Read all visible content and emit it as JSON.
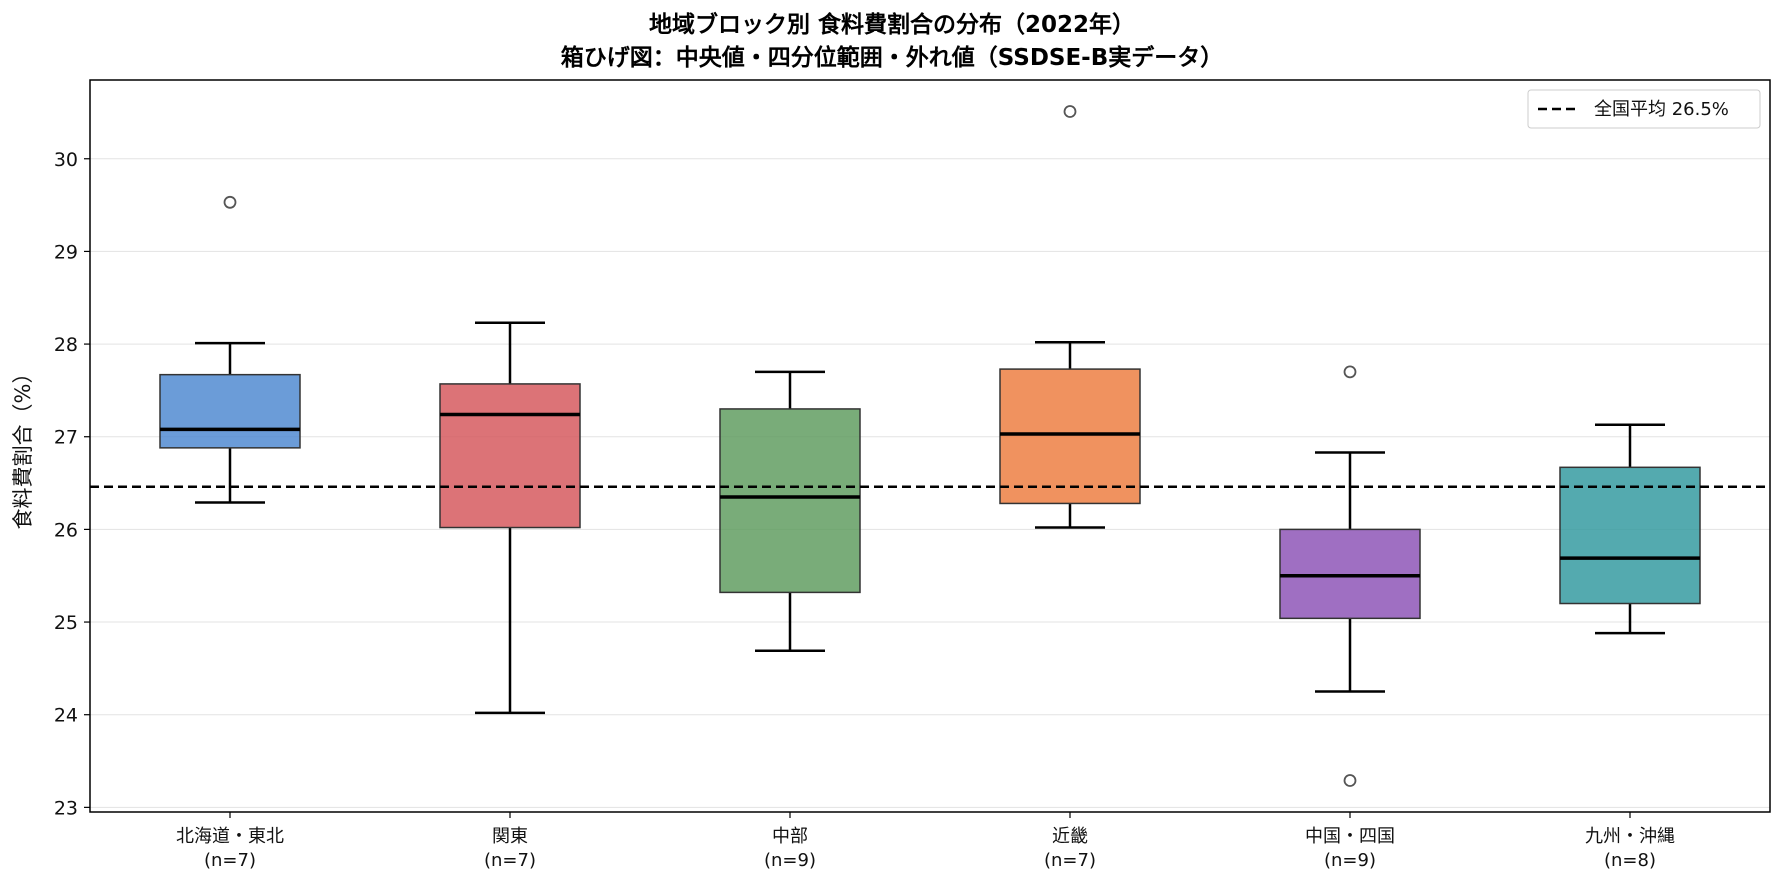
{
  "chart_data": {
    "type": "box",
    "title_line1": "地域ブロック別 食料費割合の分布（2022年）",
    "title_line2": "箱ひげ図：中央値・四分位範囲・外れ値（SSDSE-B実データ）",
    "ylabel": "食料費割合（%）",
    "xlabel": "",
    "ylim": [
      22.95,
      30.85
    ],
    "yticks": [
      23,
      24,
      25,
      26,
      27,
      28,
      29,
      30
    ],
    "grid": "horizontal",
    "legend_position": "top-right",
    "reference_line": {
      "label": "全国平均 26.5%",
      "value": 26.46,
      "style": "dashed",
      "color": "#000000"
    },
    "categories": [
      {
        "name": "北海道・東北",
        "n_label": "(n=7)",
        "color": "#4a86d0",
        "whisker_low": 26.29,
        "q1": 26.88,
        "median": 27.08,
        "q3": 27.67,
        "whisker_high": 28.01,
        "outliers": [
          29.53
        ]
      },
      {
        "name": "関東",
        "n_label": "(n=7)",
        "color": "#d45459",
        "whisker_low": 24.02,
        "q1": 26.02,
        "median": 27.24,
        "q3": 27.57,
        "whisker_high": 28.23,
        "outliers": []
      },
      {
        "name": "中部",
        "n_label": "(n=9)",
        "color": "#5b9a5b",
        "whisker_low": 24.69,
        "q1": 25.32,
        "median": 26.35,
        "q3": 27.3,
        "whisker_high": 27.7,
        "outliers": []
      },
      {
        "name": "近畿",
        "n_label": "(n=7)",
        "color": "#ed7a3c",
        "whisker_low": 26.02,
        "q1": 26.28,
        "median": 27.03,
        "q3": 27.73,
        "whisker_high": 28.02,
        "outliers": [
          30.51
        ]
      },
      {
        "name": "中国・四国",
        "n_label": "(n=9)",
        "color": "#8a4fb5",
        "whisker_low": 24.25,
        "q1": 25.04,
        "median": 25.5,
        "q3": 26.0,
        "whisker_high": 26.83,
        "outliers": [
          27.7,
          23.29
        ]
      },
      {
        "name": "九州・沖縄",
        "n_label": "(n=8)",
        "color": "#2e979e",
        "whisker_low": 24.88,
        "q1": 25.2,
        "median": 25.69,
        "q3": 26.67,
        "whisker_high": 27.13,
        "outliers": []
      }
    ]
  }
}
